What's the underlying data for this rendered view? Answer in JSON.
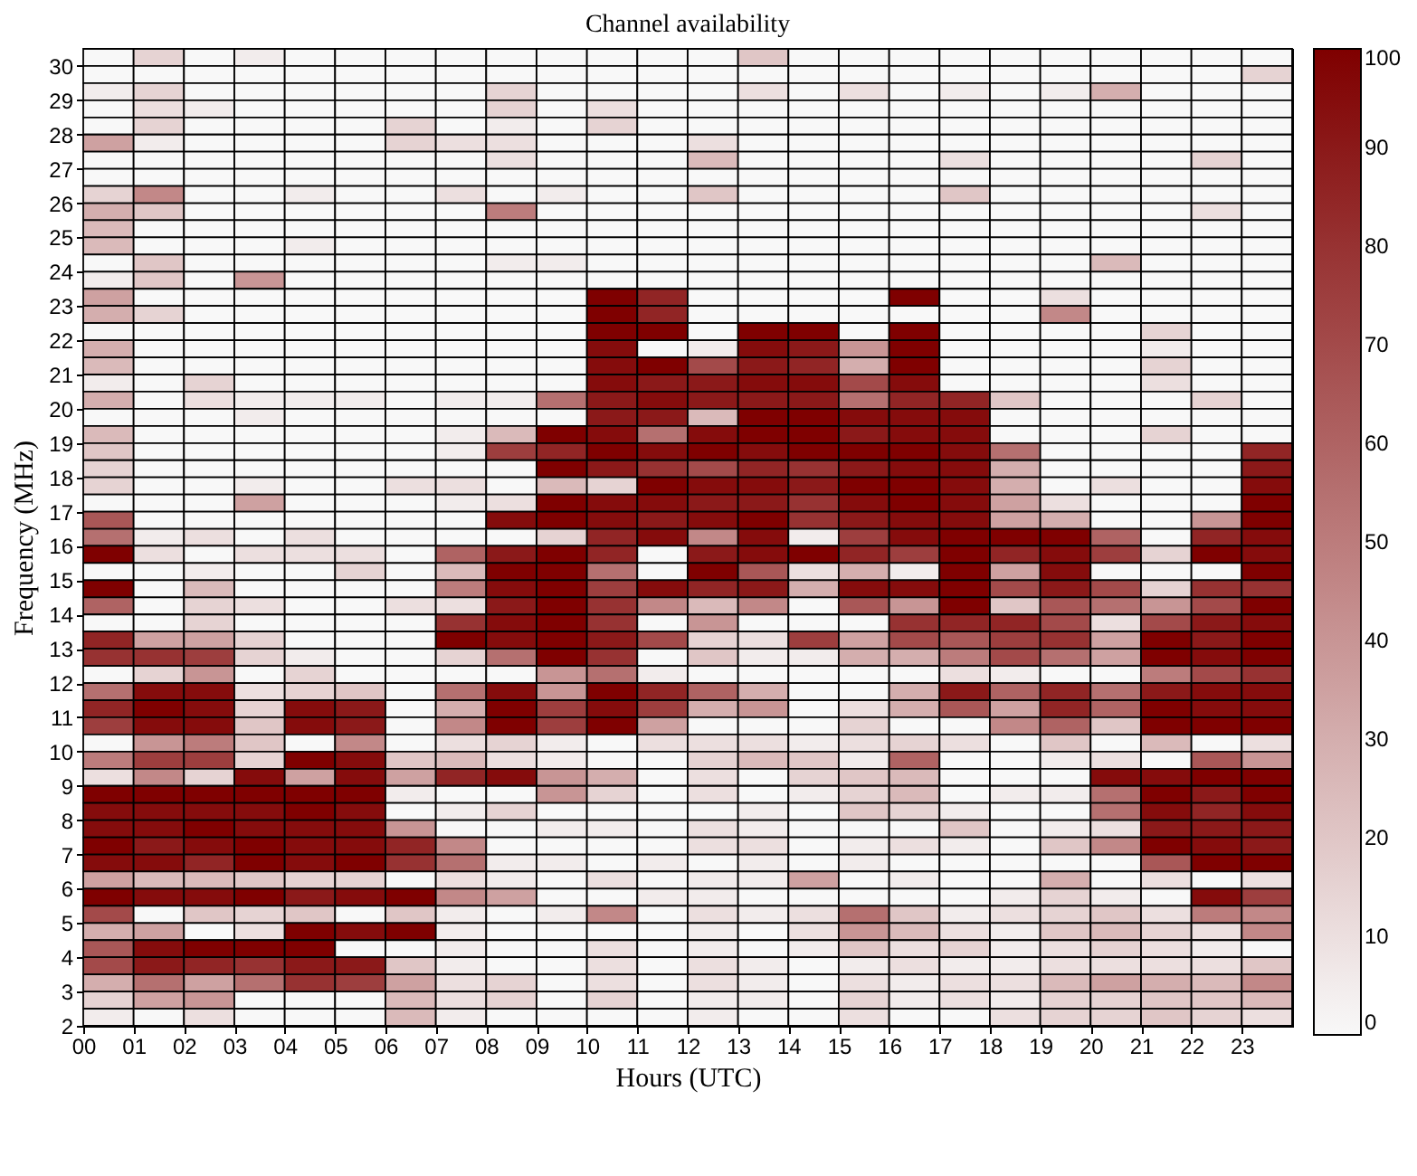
{
  "chart_data": {
    "type": "heatmap",
    "title": "Channel availability",
    "xlabel": "Hours (UTC)",
    "ylabel": "Frequency (MHz)",
    "x": [
      0,
      1,
      2,
      3,
      4,
      5,
      6,
      7,
      8,
      9,
      10,
      11,
      12,
      13,
      14,
      15,
      16,
      17,
      18,
      19,
      20,
      21,
      22,
      23
    ],
    "xlim": [
      0,
      24
    ],
    "xticks": [
      {
        "value": 0,
        "label": "00"
      },
      {
        "value": 1,
        "label": "01"
      },
      {
        "value": 2,
        "label": "02"
      },
      {
        "value": 3,
        "label": "03"
      },
      {
        "value": 4,
        "label": "04"
      },
      {
        "value": 5,
        "label": "05"
      },
      {
        "value": 6,
        "label": "06"
      },
      {
        "value": 7,
        "label": "07"
      },
      {
        "value": 8,
        "label": "08"
      },
      {
        "value": 9,
        "label": "09"
      },
      {
        "value": 10,
        "label": "10"
      },
      {
        "value": 11,
        "label": "11"
      },
      {
        "value": 12,
        "label": "12"
      },
      {
        "value": 13,
        "label": "13"
      },
      {
        "value": 14,
        "label": "14"
      },
      {
        "value": 15,
        "label": "15"
      },
      {
        "value": 16,
        "label": "16"
      },
      {
        "value": 17,
        "label": "17"
      },
      {
        "value": 18,
        "label": "18"
      },
      {
        "value": 19,
        "label": "19"
      },
      {
        "value": 20,
        "label": "20"
      },
      {
        "value": 21,
        "label": "21"
      },
      {
        "value": 22,
        "label": "22"
      },
      {
        "value": 23,
        "label": "23"
      }
    ],
    "ylim": [
      2,
      30.5
    ],
    "yticks": [
      2,
      3,
      4,
      5,
      6,
      7,
      8,
      9,
      10,
      11,
      12,
      13,
      14,
      15,
      16,
      17,
      18,
      19,
      20,
      21,
      22,
      23,
      24,
      25,
      26,
      27,
      28,
      29,
      30
    ],
    "colors": [
      "#f8f8f8",
      "#7f0000"
    ],
    "clim": [
      0,
      100
    ],
    "cticks": [
      0,
      10,
      20,
      30,
      40,
      50,
      60,
      70,
      80,
      90,
      100
    ],
    "cells": [
      [
        0,
        15,
        0,
        5,
        0,
        0,
        0,
        0,
        0,
        0,
        0,
        0,
        0,
        20,
        0,
        0,
        0,
        0,
        0,
        0,
        0,
        0,
        0,
        0
      ],
      [
        0,
        0,
        0,
        0,
        0,
        0,
        0,
        0,
        0,
        0,
        0,
        0,
        0,
        0,
        0,
        0,
        0,
        0,
        0,
        0,
        0,
        0,
        0,
        15
      ],
      [
        5,
        15,
        0,
        0,
        0,
        0,
        0,
        0,
        15,
        0,
        0,
        0,
        0,
        10,
        0,
        10,
        0,
        5,
        0,
        5,
        30,
        0,
        0,
        0
      ],
      [
        0,
        10,
        5,
        0,
        0,
        0,
        0,
        0,
        15,
        0,
        10,
        0,
        0,
        0,
        0,
        0,
        0,
        0,
        0,
        0,
        0,
        0,
        0,
        0
      ],
      [
        0,
        15,
        0,
        0,
        0,
        0,
        15,
        0,
        5,
        0,
        15,
        0,
        0,
        0,
        0,
        0,
        0,
        0,
        0,
        0,
        0,
        0,
        0,
        0
      ],
      [
        35,
        5,
        0,
        0,
        0,
        0,
        15,
        10,
        10,
        0,
        0,
        0,
        10,
        0,
        0,
        0,
        0,
        0,
        0,
        0,
        0,
        0,
        0,
        0
      ],
      [
        0,
        0,
        0,
        0,
        0,
        0,
        0,
        0,
        10,
        0,
        0,
        0,
        25,
        0,
        0,
        0,
        0,
        10,
        0,
        0,
        0,
        0,
        15,
        0
      ],
      [
        0,
        0,
        0,
        0,
        0,
        0,
        0,
        0,
        0,
        0,
        0,
        0,
        0,
        0,
        0,
        0,
        0,
        0,
        0,
        0,
        0,
        0,
        0,
        0
      ],
      [
        15,
        45,
        0,
        0,
        5,
        0,
        0,
        10,
        0,
        5,
        0,
        0,
        20,
        0,
        0,
        0,
        0,
        20,
        0,
        0,
        0,
        0,
        0,
        0
      ],
      [
        30,
        20,
        0,
        0,
        0,
        0,
        0,
        0,
        50,
        0,
        0,
        0,
        0,
        0,
        0,
        0,
        0,
        0,
        0,
        0,
        0,
        0,
        10,
        0
      ],
      [
        25,
        0,
        0,
        0,
        0,
        0,
        0,
        0,
        0,
        0,
        0,
        0,
        0,
        0,
        0,
        0,
        0,
        0,
        0,
        0,
        0,
        0,
        0,
        0
      ],
      [
        25,
        0,
        0,
        0,
        5,
        0,
        0,
        0,
        0,
        0,
        0,
        0,
        0,
        0,
        0,
        0,
        0,
        0,
        0,
        0,
        0,
        0,
        0,
        0
      ],
      [
        0,
        20,
        0,
        0,
        0,
        0,
        0,
        0,
        5,
        5,
        0,
        0,
        0,
        0,
        0,
        0,
        0,
        0,
        0,
        0,
        25,
        0,
        0,
        0
      ],
      [
        5,
        20,
        0,
        40,
        0,
        0,
        0,
        0,
        0,
        0,
        0,
        0,
        0,
        0,
        0,
        0,
        0,
        0,
        0,
        0,
        0,
        0,
        0,
        0
      ],
      [
        35,
        0,
        0,
        0,
        0,
        0,
        0,
        0,
        0,
        0,
        100,
        85,
        0,
        0,
        0,
        0,
        100,
        0,
        0,
        10,
        0,
        0,
        0,
        0
      ],
      [
        30,
        15,
        0,
        0,
        0,
        0,
        0,
        0,
        0,
        0,
        100,
        85,
        0,
        0,
        0,
        0,
        0,
        0,
        0,
        45,
        0,
        0,
        0,
        0
      ],
      [
        0,
        0,
        0,
        0,
        0,
        0,
        0,
        0,
        0,
        0,
        100,
        100,
        0,
        100,
        100,
        0,
        100,
        0,
        0,
        0,
        0,
        15,
        0,
        0
      ],
      [
        30,
        0,
        0,
        0,
        0,
        0,
        0,
        0,
        0,
        0,
        95,
        0,
        5,
        95,
        90,
        40,
        100,
        0,
        0,
        0,
        0,
        5,
        0,
        0
      ],
      [
        25,
        0,
        0,
        0,
        0,
        0,
        0,
        0,
        0,
        0,
        95,
        100,
        70,
        90,
        85,
        30,
        100,
        0,
        0,
        0,
        0,
        15,
        0,
        0
      ],
      [
        5,
        0,
        15,
        0,
        0,
        0,
        0,
        0,
        0,
        0,
        95,
        90,
        90,
        95,
        95,
        70,
        95,
        0,
        0,
        0,
        0,
        10,
        0,
        0
      ],
      [
        30,
        0,
        10,
        5,
        5,
        5,
        0,
        5,
        5,
        55,
        90,
        95,
        90,
        90,
        90,
        55,
        85,
        85,
        20,
        0,
        0,
        0,
        15,
        0
      ],
      [
        0,
        0,
        0,
        5,
        0,
        0,
        0,
        0,
        0,
        0,
        90,
        90,
        25,
        100,
        100,
        95,
        95,
        95,
        0,
        0,
        0,
        0,
        0,
        0
      ],
      [
        25,
        0,
        0,
        0,
        0,
        0,
        0,
        5,
        25,
        100,
        95,
        55,
        95,
        100,
        100,
        90,
        95,
        95,
        0,
        0,
        0,
        15,
        0,
        0
      ],
      [
        20,
        0,
        0,
        0,
        0,
        0,
        0,
        5,
        75,
        85,
        100,
        95,
        100,
        95,
        100,
        100,
        100,
        95,
        55,
        0,
        0,
        0,
        0,
        85
      ],
      [
        15,
        0,
        0,
        0,
        0,
        0,
        0,
        0,
        0,
        100,
        90,
        80,
        70,
        85,
        80,
        90,
        95,
        95,
        30,
        0,
        0,
        0,
        0,
        90
      ],
      [
        15,
        0,
        0,
        5,
        0,
        0,
        10,
        10,
        0,
        25,
        15,
        100,
        95,
        95,
        90,
        100,
        100,
        95,
        30,
        0,
        10,
        0,
        0,
        95
      ],
      [
        0,
        0,
        0,
        35,
        0,
        0,
        0,
        5,
        10,
        100,
        95,
        95,
        90,
        90,
        80,
        95,
        100,
        95,
        35,
        10,
        0,
        0,
        0,
        100
      ],
      [
        65,
        0,
        0,
        0,
        0,
        0,
        0,
        0,
        95,
        100,
        95,
        90,
        95,
        100,
        80,
        90,
        95,
        95,
        35,
        30,
        0,
        0,
        40,
        100
      ],
      [
        55,
        5,
        10,
        0,
        10,
        0,
        0,
        0,
        0,
        15,
        85,
        95,
        45,
        95,
        5,
        75,
        95,
        100,
        100,
        100,
        60,
        0,
        85,
        95
      ],
      [
        100,
        10,
        0,
        10,
        10,
        10,
        0,
        60,
        90,
        100,
        85,
        0,
        90,
        95,
        100,
        85,
        75,
        100,
        85,
        95,
        75,
        15,
        100,
        95
      ],
      [
        0,
        0,
        5,
        0,
        0,
        15,
        0,
        25,
        100,
        100,
        55,
        0,
        100,
        65,
        10,
        30,
        5,
        100,
        35,
        95,
        0,
        0,
        0,
        100
      ],
      [
        100,
        0,
        25,
        0,
        0,
        0,
        0,
        50,
        95,
        100,
        75,
        95,
        85,
        90,
        30,
        95,
        95,
        100,
        70,
        90,
        70,
        15,
        80,
        80
      ],
      [
        60,
        0,
        15,
        10,
        0,
        0,
        10,
        10,
        90,
        100,
        80,
        45,
        25,
        45,
        0,
        65,
        40,
        100,
        20,
        65,
        55,
        40,
        70,
        100
      ],
      [
        0,
        0,
        15,
        0,
        0,
        0,
        0,
        80,
        95,
        100,
        80,
        0,
        40,
        0,
        0,
        0,
        80,
        85,
        85,
        70,
        10,
        70,
        90,
        95
      ],
      [
        85,
        35,
        35,
        15,
        0,
        0,
        0,
        100,
        95,
        100,
        90,
        70,
        15,
        10,
        75,
        35,
        70,
        65,
        75,
        80,
        35,
        100,
        90,
        100
      ],
      [
        80,
        80,
        75,
        15,
        5,
        0,
        0,
        15,
        55,
        100,
        80,
        0,
        20,
        5,
        5,
        30,
        30,
        50,
        70,
        55,
        35,
        100,
        95,
        100
      ],
      [
        0,
        15,
        40,
        0,
        15,
        0,
        0,
        0,
        0,
        40,
        55,
        5,
        0,
        0,
        0,
        0,
        0,
        10,
        5,
        0,
        0,
        50,
        70,
        80
      ],
      [
        55,
        95,
        95,
        10,
        15,
        20,
        0,
        55,
        95,
        40,
        100,
        85,
        60,
        30,
        0,
        0,
        30,
        90,
        60,
        85,
        55,
        90,
        95,
        95
      ],
      [
        85,
        100,
        95,
        15,
        95,
        90,
        0,
        30,
        100,
        75,
        95,
        75,
        30,
        40,
        0,
        10,
        30,
        65,
        35,
        85,
        60,
        100,
        95,
        95
      ],
      [
        75,
        95,
        95,
        20,
        95,
        90,
        0,
        45,
        100,
        75,
        100,
        35,
        0,
        0,
        0,
        15,
        0,
        0,
        45,
        60,
        20,
        100,
        100,
        100
      ],
      [
        0,
        40,
        50,
        20,
        0,
        45,
        0,
        10,
        15,
        5,
        0,
        10,
        10,
        10,
        5,
        10,
        15,
        10,
        0,
        20,
        0,
        25,
        0,
        10
      ],
      [
        50,
        75,
        75,
        15,
        100,
        95,
        20,
        25,
        10,
        5,
        0,
        0,
        15,
        25,
        20,
        5,
        60,
        0,
        0,
        5,
        10,
        0,
        65,
        40
      ],
      [
        10,
        45,
        15,
        95,
        35,
        95,
        35,
        85,
        95,
        40,
        30,
        0,
        10,
        0,
        15,
        20,
        25,
        0,
        0,
        0,
        95,
        95,
        100,
        100
      ],
      [
        100,
        100,
        100,
        100,
        100,
        100,
        5,
        0,
        0,
        40,
        15,
        0,
        10,
        0,
        5,
        15,
        25,
        0,
        5,
        5,
        55,
        100,
        90,
        100
      ],
      [
        95,
        95,
        95,
        95,
        100,
        95,
        0,
        5,
        15,
        0,
        0,
        0,
        0,
        5,
        0,
        20,
        15,
        5,
        0,
        0,
        55,
        95,
        85,
        95
      ],
      [
        95,
        95,
        100,
        95,
        95,
        95,
        40,
        0,
        0,
        5,
        5,
        0,
        10,
        5,
        0,
        0,
        0,
        20,
        0,
        5,
        10,
        90,
        90,
        90
      ],
      [
        100,
        90,
        95,
        100,
        95,
        95,
        85,
        45,
        0,
        0,
        0,
        0,
        10,
        10,
        0,
        5,
        10,
        5,
        0,
        20,
        45,
        100,
        95,
        90
      ],
      [
        95,
        95,
        85,
        100,
        95,
        100,
        80,
        55,
        5,
        5,
        0,
        5,
        0,
        5,
        0,
        5,
        0,
        0,
        0,
        0,
        0,
        65,
        100,
        100
      ],
      [
        35,
        25,
        25,
        20,
        15,
        15,
        0,
        10,
        5,
        0,
        10,
        0,
        5,
        5,
        35,
        0,
        5,
        0,
        0,
        30,
        0,
        10,
        0,
        10
      ],
      [
        100,
        95,
        95,
        100,
        90,
        95,
        100,
        45,
        35,
        0,
        0,
        5,
        5,
        0,
        0,
        0,
        0,
        0,
        5,
        15,
        5,
        0,
        95,
        75
      ],
      [
        70,
        0,
        20,
        15,
        20,
        0,
        20,
        5,
        0,
        5,
        45,
        0,
        10,
        5,
        10,
        55,
        20,
        5,
        10,
        15,
        20,
        10,
        50,
        45
      ],
      [
        30,
        35,
        0,
        10,
        100,
        95,
        100,
        5,
        0,
        0,
        0,
        0,
        5,
        0,
        10,
        40,
        25,
        10,
        5,
        20,
        25,
        15,
        10,
        45
      ],
      [
        65,
        95,
        100,
        100,
        100,
        0,
        0,
        5,
        0,
        0,
        10,
        0,
        5,
        0,
        5,
        20,
        10,
        15,
        5,
        10,
        15,
        10,
        5,
        0
      ],
      [
        70,
        90,
        85,
        80,
        90,
        90,
        20,
        5,
        0,
        0,
        10,
        0,
        10,
        5,
        0,
        5,
        10,
        5,
        5,
        10,
        10,
        10,
        10,
        20
      ],
      [
        30,
        55,
        35,
        55,
        80,
        75,
        35,
        10,
        15,
        0,
        10,
        0,
        10,
        5,
        0,
        10,
        5,
        10,
        10,
        25,
        35,
        30,
        25,
        45
      ],
      [
        15,
        35,
        40,
        0,
        0,
        0,
        25,
        10,
        15,
        0,
        15,
        0,
        5,
        5,
        0,
        15,
        5,
        10,
        5,
        15,
        15,
        20,
        20,
        25
      ],
      [
        5,
        0,
        10,
        0,
        0,
        0,
        25,
        5,
        0,
        0,
        0,
        0,
        5,
        0,
        0,
        10,
        0,
        0,
        10,
        15,
        15,
        20,
        15,
        10
      ]
    ]
  }
}
